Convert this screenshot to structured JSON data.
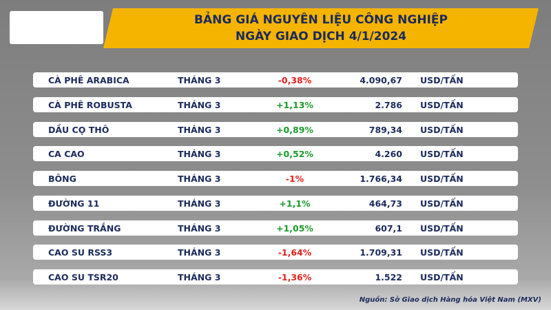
{
  "header": {
    "title_lines": [
      "BẢNG GIÁ NGUYÊN LIỆU CÔNG NGHIỆP",
      "NGÀY GIAO DỊCH 4/1/2024"
    ]
  },
  "table": {
    "rows": [
      [
        "CÀ PHÊ ARABICA",
        "THÁNG 3",
        "-0,38%",
        "4.090,67",
        "USD/TẤN"
      ],
      [
        "CÀ PHÊ ROBUSTA",
        "THÁNG 3",
        "+1,13%",
        "2.786",
        "USD/TẤN"
      ],
      [
        "DẦU CỌ THÔ",
        "THÁNG 3",
        "+0,89%",
        "789,34",
        "USD/TẤN"
      ],
      [
        "CA CAO",
        "THÁNG 3",
        "+0,52%",
        "4.260",
        "USD/TẤN"
      ],
      [
        "BÔNG",
        "THÁNG 3",
        "-1%",
        "1.766,34",
        "USD/TẤN"
      ],
      [
        "ĐƯỜNG 11",
        "THÁNG 3",
        "+1,1%",
        "464,73",
        "USD/TẤN"
      ],
      [
        "ĐƯỜNG TRẮNG",
        "THÁNG 3",
        "+1,05%",
        "607,1",
        "USD/TẤN"
      ],
      [
        "CAO SU RSS3",
        "THÁNG 3",
        "-1,64%",
        "1.709,31",
        "USD/TẤN"
      ],
      [
        "CAO SU TSR20",
        "THÁNG 3",
        "-1,36%",
        "1.522",
        "USD/TẤN"
      ]
    ]
  },
  "footer": {
    "source": "Nguồn: Sở Giao dịch Hàng hóa Việt Nam (MXV)"
  }
}
